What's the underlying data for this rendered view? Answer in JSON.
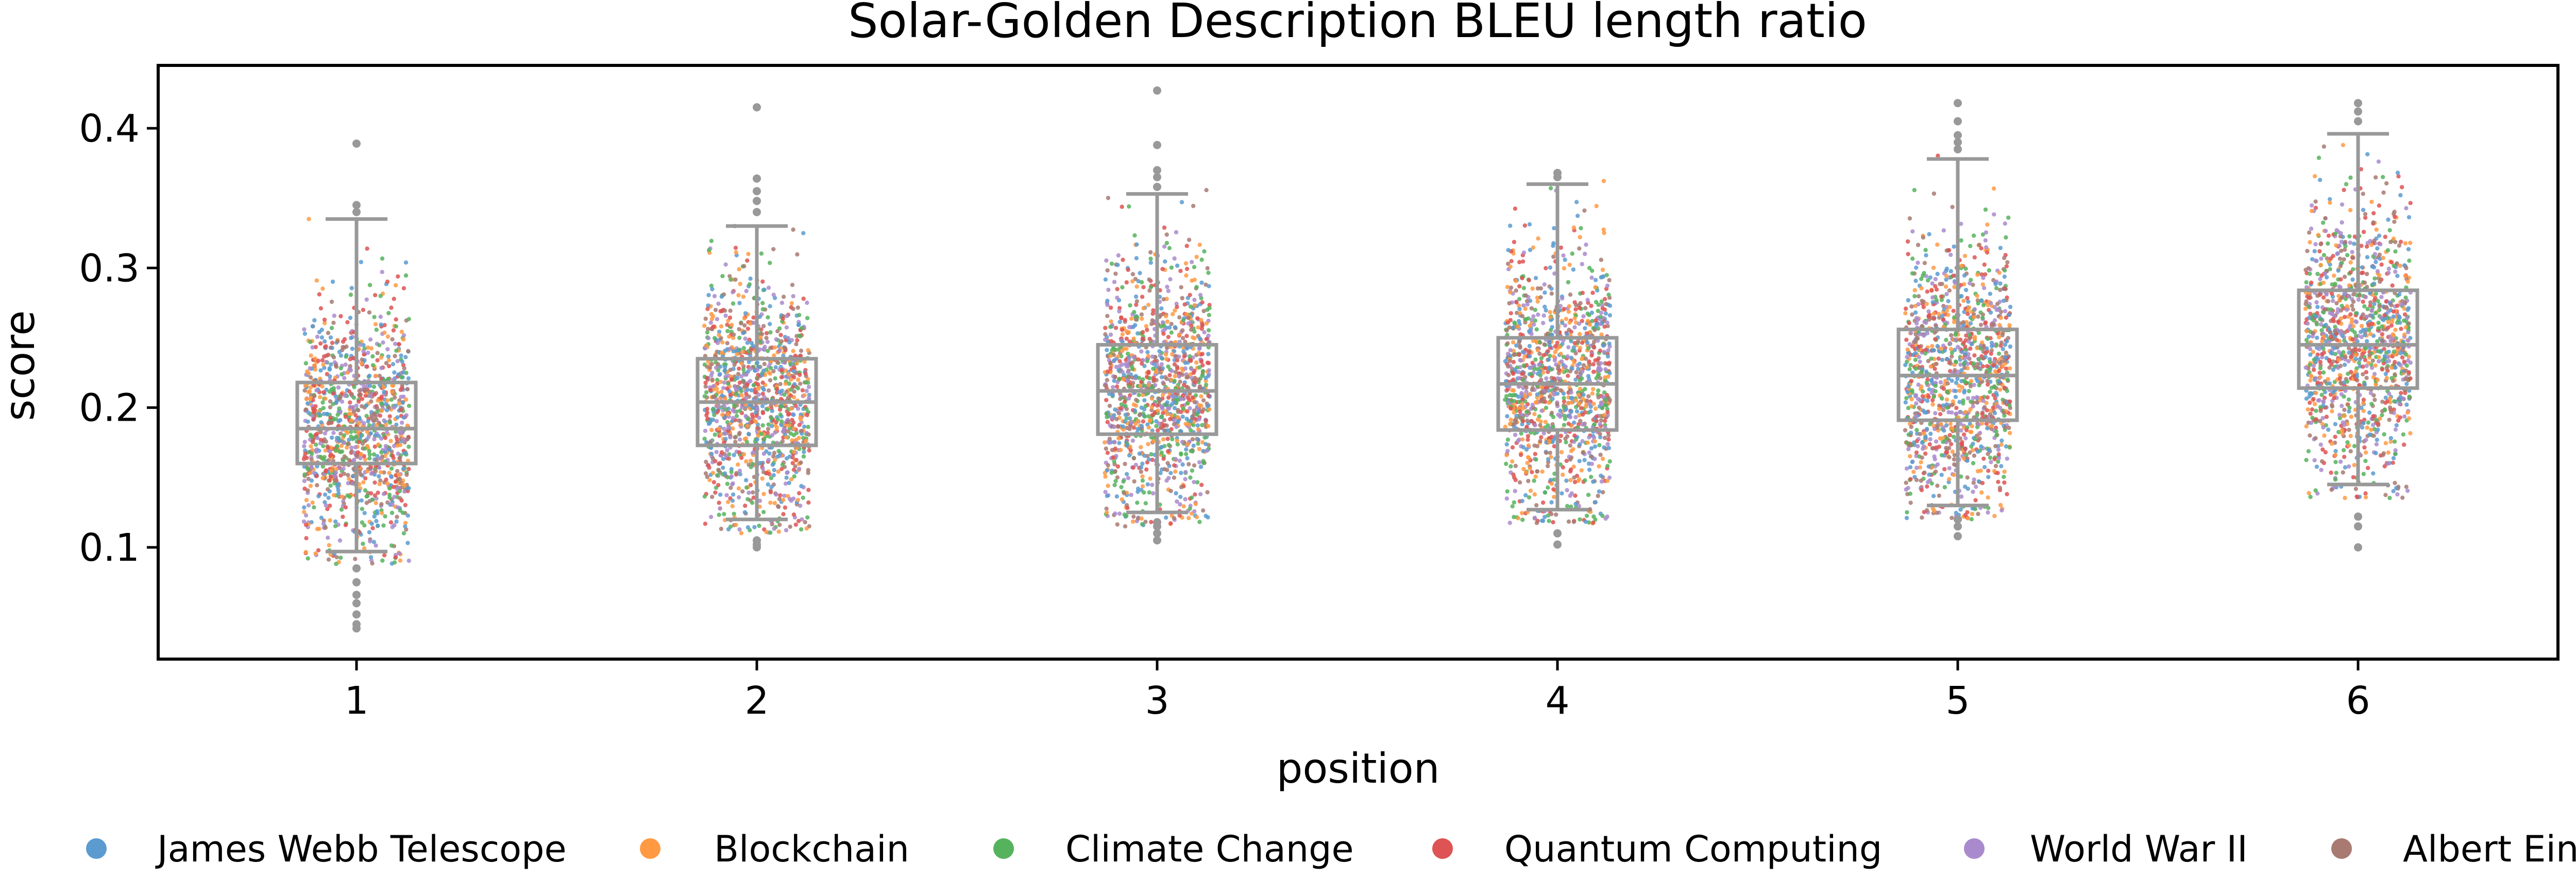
{
  "chart_data": {
    "type": "box+strip",
    "title": "Solar-Golden Description BLEU length ratio",
    "xlabel": "position",
    "ylabel": "score",
    "categories": [
      "1",
      "2",
      "3",
      "4",
      "5",
      "6"
    ],
    "yticks": [
      "0.1",
      "0.2",
      "0.3",
      "0.4"
    ],
    "ylim": [
      0.02,
      0.445
    ],
    "grid": false,
    "legend_placement": "bottom",
    "box_color": "#999999",
    "boxes": [
      {
        "category": "1",
        "whisker_low": 0.097,
        "q1": 0.16,
        "median": 0.185,
        "q3": 0.218,
        "whisker_high": 0.335
      },
      {
        "category": "2",
        "whisker_low": 0.12,
        "q1": 0.173,
        "median": 0.204,
        "q3": 0.235,
        "whisker_high": 0.33
      },
      {
        "category": "3",
        "whisker_low": 0.125,
        "q1": 0.181,
        "median": 0.212,
        "q3": 0.245,
        "whisker_high": 0.353
      },
      {
        "category": "4",
        "whisker_low": 0.127,
        "q1": 0.184,
        "median": 0.217,
        "q3": 0.25,
        "whisker_high": 0.36
      },
      {
        "category": "5",
        "whisker_low": 0.13,
        "q1": 0.191,
        "median": 0.223,
        "q3": 0.256,
        "whisker_high": 0.378
      },
      {
        "category": "6",
        "whisker_low": 0.145,
        "q1": 0.214,
        "median": 0.245,
        "q3": 0.284,
        "whisker_high": 0.396
      }
    ],
    "outliers": [
      {
        "category": "1",
        "values": [
          0.389,
          0.345,
          0.34,
          0.085,
          0.075,
          0.066,
          0.06,
          0.052,
          0.045,
          0.042
        ]
      },
      {
        "category": "2",
        "values": [
          0.415,
          0.364,
          0.355,
          0.348,
          0.34,
          0.105,
          0.102,
          0.1
        ]
      },
      {
        "category": "3",
        "values": [
          0.427,
          0.388,
          0.37,
          0.365,
          0.358,
          0.118,
          0.115,
          0.11,
          0.105
        ]
      },
      {
        "category": "4",
        "values": [
          0.368,
          0.365,
          0.11,
          0.102
        ]
      },
      {
        "category": "5",
        "values": [
          0.418,
          0.405,
          0.395,
          0.39,
          0.385,
          0.12,
          0.115,
          0.108
        ]
      },
      {
        "category": "6",
        "values": [
          0.418,
          0.412,
          0.405,
          0.122,
          0.115,
          0.1
        ]
      }
    ],
    "series": [
      {
        "name": "James Webb Telescope",
        "color": "#5b9bd0"
      },
      {
        "name": "Blockchain",
        "color": "#ff9a43"
      },
      {
        "name": "Climate Change",
        "color": "#56b35d"
      },
      {
        "name": "Quantum Computing",
        "color": "#de5353"
      },
      {
        "name": "World War II",
        "color": "#a98bcd"
      },
      {
        "name": "Albert Einstein",
        "color": "#a87a72"
      }
    ]
  }
}
